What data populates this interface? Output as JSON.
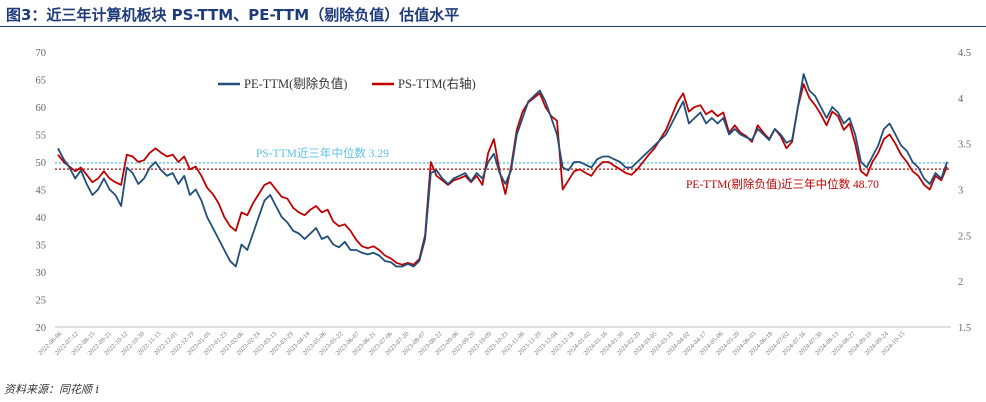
{
  "header": {
    "title": "图3：近三年计算机板块 PS-TTM、PE-TTM（剔除负值）估值水平"
  },
  "footer": {
    "source": "资料来源：同花顺 i"
  },
  "colors": {
    "pe": "#1f4e79",
    "ps": "#c00000",
    "ps_median_line": "#5bc2e7",
    "pe_median_line": "#c00000",
    "title": "#1f3b7a"
  },
  "chart_data": {
    "type": "line",
    "legend": {
      "placement": "top-left",
      "entries": [
        "PE-TTM(剔除负值)",
        "PS-TTM(右轴)"
      ]
    },
    "y_left": {
      "range": [
        20,
        70
      ],
      "ticks": [
        "20",
        "25",
        "30",
        "35",
        "40",
        "45",
        "50",
        "55",
        "60",
        "65",
        "70"
      ]
    },
    "y_right": {
      "range": [
        1.5,
        4.5
      ],
      "ticks": [
        "1.5",
        "2",
        "2.5",
        "3",
        "3.5",
        "4",
        "4.5"
      ]
    },
    "x_tick_labels": [
      "2022-06-06",
      "2022-07-12",
      "2022-08-15",
      "2022-09-21",
      "2022-10-12",
      "2022-10-30",
      "2022-11-15",
      "2022-12-01",
      "2022-12-19",
      "2023-01-05",
      "2023-01-23",
      "2023-02-06",
      "2023-02-24",
      "2023-03-13",
      "2023-03-29",
      "2023-04-14",
      "2023-05-06",
      "2023-05-22",
      "2023-06-07",
      "2023-06-21",
      "2023-07-06",
      "2023-07-20",
      "2023-08-07",
      "2023-08-22",
      "2023-09-06",
      "2023-09-20",
      "2023-10-09",
      "2023-10-23",
      "2023-11-06",
      "2023-11-20",
      "2023-12-04",
      "2023-12-18",
      "2024-01-02",
      "2024-01-16",
      "2024-01-30",
      "2024-02-20",
      "2024-03-05",
      "2024-03-19",
      "2024-04-02",
      "2024-04-17",
      "2024-05-06",
      "2024-05-20",
      "2024-06-03",
      "2024-06-18",
      "2024-07-02",
      "2024-07-16",
      "2024-07-30",
      "2024-08-13",
      "2024-08-27",
      "2024-09-10",
      "2024-09-24",
      "2024-10-15"
    ],
    "annotations": [
      {
        "text": "PS-TTM近三年中位数  3.29",
        "axis": "right",
        "value": 3.29
      },
      {
        "text": "PE-TTM(剔除负值)近三年中位数  48.70",
        "axis": "left",
        "value": 48.7
      }
    ],
    "series": [
      {
        "name": "PE-TTM(剔除负值)",
        "axis": "left",
        "values": [
          52.5,
          50.5,
          49.0,
          47.0,
          48.5,
          46.0,
          44.0,
          45.0,
          47.0,
          45.0,
          44.0,
          42.0,
          49.0,
          48.0,
          46.0,
          47.0,
          49.0,
          50.0,
          48.5,
          47.5,
          48.0,
          46.0,
          47.5,
          44.0,
          45.0,
          43.0,
          40.0,
          38.0,
          36.0,
          34.0,
          32.0,
          31.0,
          35.0,
          34.0,
          37.0,
          40.0,
          43.0,
          44.0,
          42.0,
          40.0,
          39.0,
          37.5,
          37.0,
          36.0,
          37.0,
          38.0,
          36.0,
          36.5,
          35.0,
          34.5,
          35.5,
          34.0,
          34.0,
          33.5,
          33.2,
          33.5,
          33.0,
          32.0,
          31.8,
          31.0,
          31.0,
          31.5,
          31.0,
          32.0,
          36.0,
          48.0,
          48.5,
          47.0,
          46.0,
          47.0,
          47.5,
          48.0,
          46.5,
          48.0,
          47.0,
          50.0,
          51.5,
          48.0,
          46.0,
          48.5,
          55.0,
          58.0,
          61.0,
          62.0,
          63.0,
          61.0,
          58.0,
          55.0,
          49.0,
          48.5,
          50.0,
          50.0,
          49.5,
          49.0,
          50.5,
          51.0,
          51.0,
          50.5,
          50.0,
          49.0,
          49.0,
          50.0,
          51.0,
          52.0,
          53.0,
          54.0,
          55.0,
          57.0,
          59.0,
          61.0,
          57.0,
          58.0,
          59.0,
          57.0,
          58.0,
          57.0,
          58.0,
          55.0,
          56.0,
          55.0,
          54.5,
          54.0,
          56.0,
          55.0,
          54.0,
          56.0,
          55.0,
          53.5,
          54.0,
          60.0,
          66.0,
          63.0,
          62.0,
          60.0,
          58.0,
          60.0,
          59.0,
          57.0,
          58.0,
          55.0,
          50.0,
          49.0,
          51.0,
          53.0,
          56.0,
          57.0,
          55.0,
          53.0,
          52.0,
          50.0,
          49.0,
          47.0,
          46.0,
          48.0,
          47.0,
          50.0
        ]
      },
      {
        "name": "PS-TTM(右轴)",
        "axis": "right",
        "values": [
          3.38,
          3.3,
          3.25,
          3.2,
          3.24,
          3.16,
          3.08,
          3.12,
          3.2,
          3.12,
          3.08,
          3.05,
          3.38,
          3.36,
          3.3,
          3.32,
          3.4,
          3.45,
          3.4,
          3.36,
          3.38,
          3.3,
          3.36,
          3.22,
          3.25,
          3.15,
          3.02,
          2.95,
          2.85,
          2.7,
          2.6,
          2.55,
          2.75,
          2.72,
          2.85,
          2.95,
          3.05,
          3.08,
          3.0,
          2.92,
          2.9,
          2.8,
          2.75,
          2.72,
          2.78,
          2.82,
          2.75,
          2.78,
          2.65,
          2.6,
          2.62,
          2.55,
          2.45,
          2.38,
          2.36,
          2.38,
          2.34,
          2.28,
          2.25,
          2.2,
          2.18,
          2.2,
          2.18,
          2.24,
          2.5,
          3.3,
          3.15,
          3.1,
          3.05,
          3.1,
          3.12,
          3.15,
          3.08,
          3.15,
          3.05,
          3.4,
          3.55,
          3.2,
          2.95,
          3.25,
          3.65,
          3.85,
          3.95,
          4.0,
          4.05,
          3.9,
          3.8,
          3.75,
          3.0,
          3.1,
          3.2,
          3.22,
          3.18,
          3.15,
          3.24,
          3.3,
          3.3,
          3.26,
          3.22,
          3.18,
          3.16,
          3.22,
          3.3,
          3.38,
          3.45,
          3.55,
          3.65,
          3.8,
          3.95,
          4.05,
          3.85,
          3.9,
          3.92,
          3.82,
          3.86,
          3.8,
          3.84,
          3.62,
          3.7,
          3.62,
          3.58,
          3.52,
          3.7,
          3.62,
          3.55,
          3.66,
          3.58,
          3.45,
          3.52,
          3.9,
          4.15,
          4.0,
          3.92,
          3.82,
          3.7,
          3.85,
          3.8,
          3.65,
          3.72,
          3.5,
          3.2,
          3.15,
          3.3,
          3.4,
          3.55,
          3.6,
          3.5,
          3.38,
          3.3,
          3.2,
          3.15,
          3.05,
          3.0,
          3.15,
          3.1,
          3.25
        ]
      }
    ]
  }
}
